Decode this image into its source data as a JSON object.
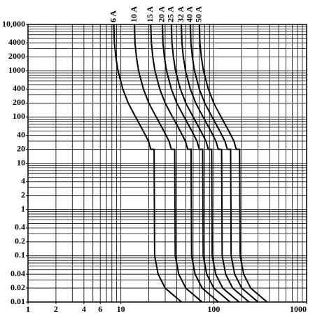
{
  "chart_data": {
    "type": "line",
    "log_x": true,
    "log_y": true,
    "grid": true,
    "xlim": [
      1,
      1000
    ],
    "ylim": [
      0.01,
      10000
    ],
    "xticks": [
      1,
      2,
      4,
      6,
      10,
      100,
      1000
    ],
    "yticks": [
      {
        "value": 10000,
        "label": "10,000"
      },
      4000,
      2000,
      1000,
      400,
      200,
      100,
      40,
      20,
      10,
      4,
      2,
      1,
      0.4,
      0.2,
      0.1,
      0.04,
      0.02,
      0.01
    ],
    "xgrid": [
      1,
      2,
      3,
      4,
      5,
      6,
      7,
      8,
      9,
      10,
      20,
      30,
      40,
      50,
      60,
      70,
      80,
      90,
      100,
      200,
      300,
      400,
      500,
      600,
      700,
      800,
      900,
      1000
    ],
    "ygrid": [
      0.01,
      0.02,
      0.03,
      0.04,
      0.05,
      0.06,
      0.07,
      0.08,
      0.09,
      0.1,
      0.2,
      0.3,
      0.4,
      0.5,
      0.6,
      0.7,
      0.8,
      0.9,
      1,
      2,
      3,
      4,
      5,
      6,
      7,
      8,
      9,
      10,
      20,
      30,
      40,
      50,
      60,
      70,
      80,
      90,
      100,
      200,
      300,
      400,
      500,
      600,
      700,
      800,
      900,
      1000,
      2000,
      3000,
      4000,
      5000,
      6000,
      7000,
      8000,
      9000,
      10000
    ],
    "series": [
      {
        "name": "6 A",
        "color": "#000",
        "x": [
          8.4,
          8.52,
          8.82,
          9.3,
          10.5,
          12,
          14.4,
          17.4,
          19.8,
          21,
          22.8,
          23.1,
          25.2,
          30,
          45
        ],
        "values": [
          10000,
          4000,
          2000,
          1000,
          400,
          200,
          100,
          50,
          30,
          20,
          20,
          0.1,
          0.04,
          0.02,
          0.01
        ]
      },
      {
        "name": "10 A",
        "color": "#000",
        "x": [
          14,
          14.2,
          14.7,
          15.5,
          17.5,
          20,
          24,
          29,
          33,
          35,
          38,
          38.5,
          42,
          50,
          75
        ],
        "values": [
          10000,
          4000,
          2000,
          1000,
          400,
          200,
          100,
          50,
          30,
          20,
          20,
          0.1,
          0.04,
          0.02,
          0.01
        ]
      },
      {
        "name": "15 A",
        "color": "#000",
        "x": [
          21,
          21.3,
          22.05,
          23.25,
          26.25,
          30,
          36,
          43.5,
          49.5,
          52.5,
          57,
          57.75,
          63,
          75,
          112.5
        ],
        "values": [
          10000,
          4000,
          2000,
          1000,
          400,
          200,
          100,
          50,
          30,
          20,
          20,
          0.1,
          0.04,
          0.02,
          0.01
        ]
      },
      {
        "name": "20 A",
        "color": "#000",
        "x": [
          28,
          28.4,
          29.4,
          31,
          35,
          40,
          48,
          58,
          66,
          70,
          76,
          77,
          84,
          100,
          150
        ],
        "values": [
          10000,
          4000,
          2000,
          1000,
          400,
          200,
          100,
          50,
          30,
          20,
          20,
          0.1,
          0.04,
          0.02,
          0.01
        ]
      },
      {
        "name": "25 A",
        "color": "#000",
        "x": [
          35,
          35.5,
          36.75,
          38.75,
          43.75,
          50,
          60,
          72.5,
          82.5,
          87.5,
          95,
          96.25,
          105,
          125,
          187.5
        ],
        "values": [
          10000,
          4000,
          2000,
          1000,
          400,
          200,
          100,
          50,
          30,
          20,
          20,
          0.1,
          0.04,
          0.02,
          0.01
        ]
      },
      {
        "name": "32 A",
        "color": "#000",
        "x": [
          44.8,
          45.44,
          47.04,
          49.6,
          56,
          64,
          76.8,
          92.8,
          105.6,
          112,
          121.6,
          123.2,
          134.4,
          160,
          240
        ],
        "values": [
          10000,
          4000,
          2000,
          1000,
          400,
          200,
          100,
          50,
          30,
          20,
          20,
          0.1,
          0.04,
          0.02,
          0.01
        ]
      },
      {
        "name": "40 A",
        "color": "#000",
        "x": [
          56,
          56.8,
          58.8,
          62,
          70,
          80,
          96,
          116,
          132,
          140,
          152,
          154,
          168,
          200,
          300
        ],
        "values": [
          10000,
          4000,
          2000,
          1000,
          400,
          200,
          100,
          50,
          30,
          20,
          20,
          0.1,
          0.04,
          0.02,
          0.01
        ]
      },
      {
        "name": "50 A",
        "color": "#000",
        "x": [
          70,
          71,
          73.5,
          77.5,
          87.5,
          100,
          120,
          145,
          165,
          175,
          190,
          192.5,
          210,
          250,
          375
        ],
        "values": [
          10000,
          4000,
          2000,
          1000,
          400,
          200,
          100,
          50,
          30,
          20,
          20,
          0.1,
          0.04,
          0.02,
          0.01
        ]
      }
    ]
  }
}
